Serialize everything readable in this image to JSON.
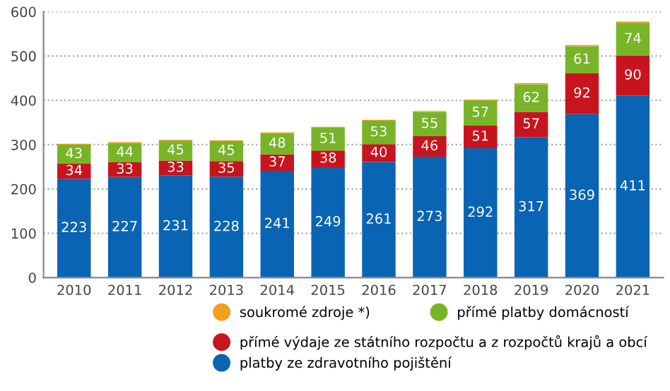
{
  "chart_data": {
    "type": "bar",
    "stacked": true,
    "categories": [
      "2010",
      "2011",
      "2012",
      "2013",
      "2014",
      "2015",
      "2016",
      "2017",
      "2018",
      "2019",
      "2020",
      "2021"
    ],
    "series": [
      {
        "name": "platby ze zdravotního pojištění",
        "color": "#0a64b4",
        "values": [
          223,
          227,
          231,
          228,
          241,
          249,
          261,
          273,
          292,
          317,
          369,
          411
        ],
        "value_labels": [
          "223",
          "227",
          "231",
          "228",
          "241",
          "249",
          "261",
          "273",
          "292",
          "317",
          "369",
          "411"
        ]
      },
      {
        "name": "přímé výdaje ze státního rozpočtu a z rozpočtů krajů a obcí",
        "color": "#c8141e",
        "values": [
          34,
          33,
          33,
          35,
          37,
          38,
          40,
          46,
          51,
          57,
          92,
          90
        ],
        "value_labels": [
          "34",
          "33",
          "33",
          "35",
          "37",
          "38",
          "40",
          "46",
          "51",
          "57",
          "92",
          "90"
        ]
      },
      {
        "name": "přímé platby domácností",
        "color": "#78b428",
        "values": [
          43,
          44,
          45,
          45,
          48,
          51,
          53,
          55,
          57,
          62,
          61,
          74
        ],
        "value_labels": [
          "43",
          "44",
          "45",
          "45",
          "48",
          "51",
          "53",
          "55",
          "57",
          "62",
          "61",
          "74"
        ]
      },
      {
        "name": "soukromé zdroje *)",
        "color": "#f0a01e",
        "values": [
          2,
          2,
          2,
          2,
          2,
          2,
          2,
          2,
          2,
          3,
          3,
          3
        ]
      }
    ],
    "ylim": [
      0,
      600
    ],
    "yticks": [
      0,
      100,
      200,
      300,
      400,
      500,
      600
    ],
    "grid": "y",
    "legend": "bottom"
  }
}
